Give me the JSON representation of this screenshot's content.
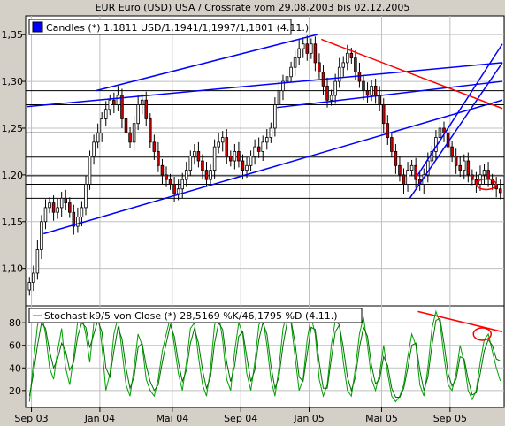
{
  "title": "EUR Euro (USD) USA / Crossrate vom 29.08.2003 bis 02.12.2005",
  "chart_data": [
    {
      "type": "candlestick",
      "legend": "Candles (*) 1,1811 USD/1,1941/1,1997/1,1801 (4.11.)",
      "ylim": [
        1.06,
        1.37
      ],
      "yticks": [
        1.1,
        1.15,
        1.2,
        1.25,
        1.3,
        1.35
      ],
      "ytick_labels": [
        "1,10",
        "1,15",
        "1,20",
        "1,25",
        "1,30",
        "1,35"
      ],
      "x_weeks": 118,
      "closes": [
        1.085,
        1.095,
        1.12,
        1.15,
        1.165,
        1.17,
        1.16,
        1.165,
        1.175,
        1.17,
        1.16,
        1.145,
        1.155,
        1.165,
        1.19,
        1.22,
        1.235,
        1.245,
        1.26,
        1.27,
        1.28,
        1.275,
        1.285,
        1.26,
        1.245,
        1.235,
        1.255,
        1.275,
        1.28,
        1.26,
        1.235,
        1.225,
        1.21,
        1.2,
        1.195,
        1.19,
        1.18,
        1.185,
        1.195,
        1.205,
        1.22,
        1.225,
        1.215,
        1.205,
        1.195,
        1.205,
        1.23,
        1.235,
        1.24,
        1.22,
        1.215,
        1.225,
        1.215,
        1.205,
        1.21,
        1.22,
        1.23,
        1.225,
        1.235,
        1.24,
        1.25,
        1.275,
        1.29,
        1.3,
        1.305,
        1.315,
        1.325,
        1.335,
        1.34,
        1.33,
        1.34,
        1.32,
        1.31,
        1.295,
        1.28,
        1.285,
        1.3,
        1.315,
        1.32,
        1.33,
        1.325,
        1.31,
        1.3,
        1.29,
        1.285,
        1.295,
        1.285,
        1.275,
        1.255,
        1.24,
        1.225,
        1.21,
        1.2,
        1.19,
        1.205,
        1.21,
        1.195,
        1.19,
        1.2,
        1.215,
        1.225,
        1.24,
        1.25,
        1.245,
        1.23,
        1.22,
        1.21,
        1.205,
        1.215,
        1.2,
        1.195,
        1.19,
        1.2,
        1.205,
        1.195,
        1.19,
        1.185,
        1.181
      ],
      "horizontal_lines": [
        1.29,
        1.275,
        1.245,
        1.219,
        1.199,
        1.19,
        1.175
      ],
      "trendlines": [
        {
          "color": "#0000ff",
          "from": [
            4,
            1.137
          ],
          "to": [
            118,
            1.28
          ]
        },
        {
          "color": "#0000ff",
          "from": [
            0,
            1.273
          ],
          "to": [
            118,
            1.32
          ]
        },
        {
          "color": "#0000ff",
          "from": [
            17,
            1.29
          ],
          "to": [
            72,
            1.35
          ]
        },
        {
          "color": "#0000ff",
          "from": [
            62,
            1.272
          ],
          "to": [
            118,
            1.3
          ]
        },
        {
          "color": "#0000ff",
          "from": [
            95,
            1.175
          ],
          "to": [
            118,
            1.32
          ]
        },
        {
          "color": "#0000ff",
          "from": [
            97,
            1.2
          ],
          "to": [
            118,
            1.34
          ]
        },
        {
          "color": "#ff0000",
          "from": [
            73,
            1.345
          ],
          "to": [
            118,
            1.271
          ]
        }
      ],
      "marker": {
        "x": 114,
        "y": 1.19,
        "color": "#ff0000"
      }
    },
    {
      "type": "line",
      "legend": "Stochastik9/5 von Close (*) 28,5169 %K/46,1795 %D (4.11.)",
      "ylim": [
        5,
        95
      ],
      "yticks": [
        20,
        40,
        60,
        80
      ],
      "ytick_labels": [
        "20",
        "40",
        "60",
        "80"
      ],
      "series": [
        {
          "name": "%K",
          "values": [
            10,
            45,
            78,
            88,
            70,
            40,
            30,
            55,
            75,
            40,
            25,
            50,
            82,
            86,
            70,
            45,
            80,
            90,
            60,
            20,
            35,
            70,
            85,
            55,
            25,
            15,
            40,
            70,
            60,
            30,
            20,
            15,
            30,
            55,
            70,
            85,
            60,
            35,
            20,
            45,
            75,
            80,
            50,
            25,
            15,
            40,
            78,
            88,
            65,
            30,
            20,
            55,
            80,
            70,
            35,
            20,
            45,
            78,
            85,
            60,
            30,
            15,
            40,
            75,
            88,
            80,
            50,
            20,
            30,
            65,
            85,
            70,
            30,
            15,
            25,
            60,
            82,
            78,
            45,
            20,
            15,
            40,
            70,
            85,
            60,
            30,
            20,
            35,
            60,
            35,
            15,
            10,
            15,
            25,
            50,
            70,
            60,
            25,
            15,
            40,
            75,
            90,
            80,
            50,
            25,
            20,
            35,
            60,
            45,
            20,
            12,
            20,
            45,
            65,
            70,
            55,
            40,
            28.5
          ]
        },
        {
          "name": "%D",
          "values": [
            15,
            35,
            60,
            80,
            75,
            55,
            40,
            48,
            62,
            55,
            38,
            45,
            68,
            80,
            76,
            58,
            70,
            82,
            72,
            40,
            32,
            55,
            76,
            66,
            40,
            22,
            32,
            58,
            62,
            42,
            28,
            20,
            25,
            45,
            62,
            78,
            68,
            45,
            28,
            38,
            62,
            75,
            62,
            38,
            22,
            32,
            62,
            80,
            74,
            45,
            28,
            42,
            68,
            72,
            50,
            28,
            38,
            65,
            80,
            70,
            42,
            22,
            32,
            60,
            80,
            82,
            62,
            32,
            28,
            52,
            76,
            74,
            45,
            22,
            22,
            48,
            72,
            78,
            58,
            32,
            20,
            32,
            58,
            76,
            68,
            42,
            26,
            30,
            50,
            42,
            22,
            14,
            14,
            22,
            40,
            60,
            62,
            38,
            20,
            32,
            60,
            82,
            84,
            62,
            35,
            24,
            30,
            50,
            48,
            30,
            16,
            18,
            35,
            55,
            65,
            60,
            48,
            46.2
          ]
        }
      ],
      "trendline": {
        "color": "#ff0000",
        "from": [
          97,
          90
        ],
        "to": [
          118,
          72
        ]
      },
      "marker": {
        "x": 113,
        "y": 70,
        "color": "#ff0000"
      }
    }
  ],
  "x_axis": {
    "labels": [
      {
        "label": "Sep 03",
        "week": 1
      },
      {
        "label": "Jan 04",
        "week": 18
      },
      {
        "label": "Mai 04",
        "week": 36
      },
      {
        "label": "Sep 04",
        "week": 53
      },
      {
        "label": "Jan 05",
        "week": 70
      },
      {
        "label": "Mai 05",
        "week": 88
      },
      {
        "label": "Sep 05",
        "week": 105
      }
    ]
  }
}
